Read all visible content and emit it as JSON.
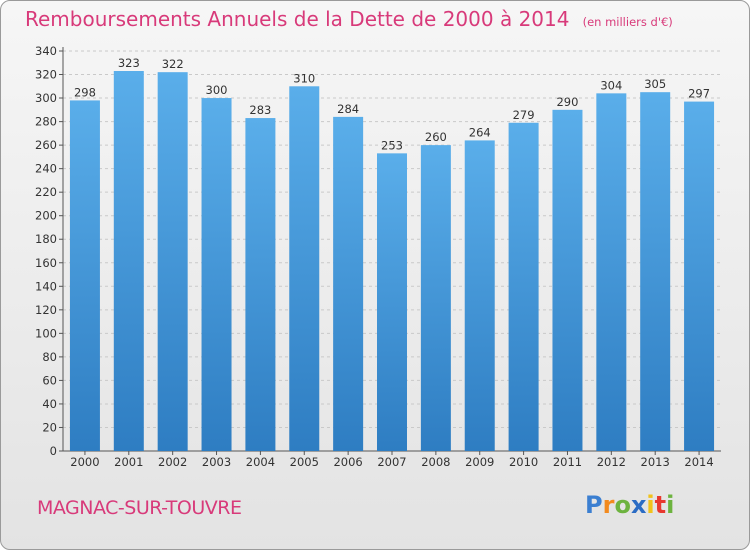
{
  "title": "Remboursements Annuels de la Dette de 2000 à 2014",
  "unit_note": "(en milliers d'€)",
  "commune": "MAGNAC-SUR-TOUVRE",
  "brand": {
    "letters": [
      "P",
      "r",
      "o",
      "x",
      "i",
      "t",
      "i"
    ],
    "colors": [
      "#3b7fd1",
      "#f28a1e",
      "#6db33f",
      "#2b6cc4",
      "#f1c21b",
      "#e8382f",
      "#6db33f"
    ]
  },
  "colors": {
    "bar": "#4a9fe3",
    "bar_dark": "#2f7fc4",
    "accent": "#d83a7a"
  },
  "chart_data": {
    "type": "bar",
    "categories": [
      "2000",
      "2001",
      "2002",
      "2003",
      "2004",
      "2005",
      "2006",
      "2007",
      "2008",
      "2009",
      "2010",
      "2011",
      "2012",
      "2013",
      "2014"
    ],
    "values": [
      298,
      323,
      322,
      300,
      283,
      310,
      284,
      253,
      260,
      264,
      279,
      290,
      304,
      305,
      297
    ],
    "ylim": [
      0,
      340
    ],
    "yticks": [
      0,
      20,
      40,
      60,
      80,
      100,
      120,
      140,
      160,
      180,
      200,
      220,
      240,
      260,
      280,
      300,
      320,
      340
    ],
    "grid": true,
    "title": "Remboursements Annuels de la Dette de 2000 à 2014",
    "xlabel": "",
    "ylabel": ""
  }
}
